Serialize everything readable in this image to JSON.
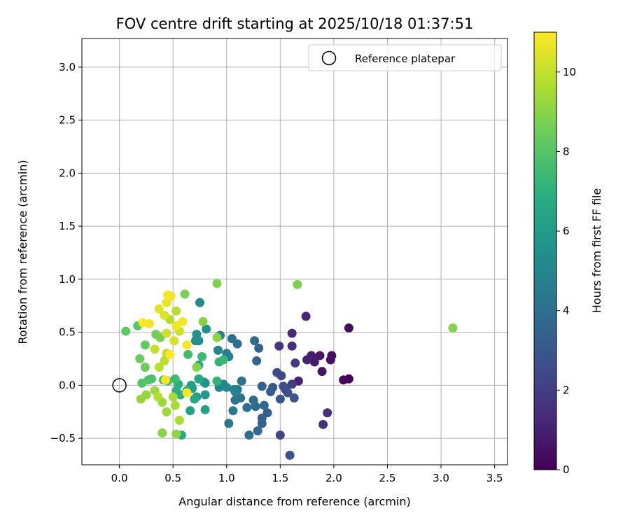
{
  "chart_data": {
    "type": "scatter",
    "title": "FOV centre drift starting at 2025/10/18 01:37:51",
    "xlabel": "Angular distance from reference (arcmin)",
    "ylabel": "Rotation from reference (arcmin)",
    "xlim": [
      -0.35,
      3.62
    ],
    "ylim": [
      -0.75,
      3.27
    ],
    "xticks": [
      0.0,
      0.5,
      1.0,
      1.5,
      2.0,
      2.5,
      3.0,
      3.5
    ],
    "yticks": [
      -0.5,
      0.0,
      0.5,
      1.0,
      1.5,
      2.0,
      2.5,
      3.0
    ],
    "xtick_labels": [
      "0.0",
      "0.5",
      "1.0",
      "1.5",
      "2.0",
      "2.5",
      "3.0",
      "3.5"
    ],
    "ytick_labels": [
      "−0.5",
      "0.0",
      "0.5",
      "1.0",
      "1.5",
      "2.0",
      "2.5",
      "3.0"
    ],
    "grid": true,
    "colormap": "viridis",
    "colorbar": {
      "label": "Hours from first FF file",
      "range": [
        0,
        11
      ],
      "ticks": [
        0,
        2,
        4,
        6,
        8,
        10
      ],
      "tick_labels": [
        "0",
        "2",
        "4",
        "6",
        "8",
        "10"
      ]
    },
    "legend": {
      "placement": "top-right",
      "entries": [
        {
          "label": "Reference platepar",
          "marker": "open-circle"
        }
      ]
    },
    "reference": {
      "x": 0.0,
      "y": 0.0
    },
    "points": [
      {
        "x": 2.14,
        "y": 0.06,
        "c": 0.1
      },
      {
        "x": 2.09,
        "y": 0.05,
        "c": 0.2
      },
      {
        "x": 2.14,
        "y": 0.54,
        "c": 0.3
      },
      {
        "x": 1.98,
        "y": 0.28,
        "c": 0.4
      },
      {
        "x": 1.97,
        "y": 0.24,
        "c": 0.5
      },
      {
        "x": 1.89,
        "y": 0.13,
        "c": 0.6
      },
      {
        "x": 1.87,
        "y": 0.28,
        "c": 0.7
      },
      {
        "x": 1.82,
        "y": 0.22,
        "c": 0.8
      },
      {
        "x": 1.79,
        "y": 0.28,
        "c": 0.9
      },
      {
        "x": 1.75,
        "y": 0.24,
        "c": 1.0
      },
      {
        "x": 1.67,
        "y": 0.04,
        "c": 1.1
      },
      {
        "x": 1.74,
        "y": 0.65,
        "c": 1.2
      },
      {
        "x": 1.61,
        "y": 0.49,
        "c": 1.3
      },
      {
        "x": 1.61,
        "y": 0.37,
        "c": 1.4
      },
      {
        "x": 1.94,
        "y": -0.26,
        "c": 1.5
      },
      {
        "x": 1.9,
        "y": -0.37,
        "c": 1.6
      },
      {
        "x": 1.49,
        "y": 0.37,
        "c": 1.7
      },
      {
        "x": 1.64,
        "y": 0.21,
        "c": 1.9
      },
      {
        "x": 1.61,
        "y": 0.01,
        "c": 2.0
      },
      {
        "x": 1.55,
        "y": -0.04,
        "c": 2.1
      },
      {
        "x": 1.5,
        "y": -0.47,
        "c": 2.3
      },
      {
        "x": 1.47,
        "y": 0.12,
        "c": 2.4
      },
      {
        "x": 1.51,
        "y": 0.09,
        "c": 2.5
      },
      {
        "x": 1.53,
        "y": -0.01,
        "c": 2.6
      },
      {
        "x": 1.57,
        "y": -0.07,
        "c": 2.7
      },
      {
        "x": 1.59,
        "y": -0.66,
        "c": 2.8
      },
      {
        "x": 1.63,
        "y": -0.12,
        "c": 2.9
      },
      {
        "x": 1.5,
        "y": -0.13,
        "c": 3.0
      },
      {
        "x": 1.43,
        "y": -0.02,
        "c": 3.1
      },
      {
        "x": 1.41,
        "y": -0.06,
        "c": 3.2
      },
      {
        "x": 1.38,
        "y": -0.26,
        "c": 3.3
      },
      {
        "x": 1.33,
        "y": -0.01,
        "c": 3.3
      },
      {
        "x": 1.33,
        "y": -0.31,
        "c": 3.4
      },
      {
        "x": 1.33,
        "y": -0.36,
        "c": 3.5
      },
      {
        "x": 1.3,
        "y": 0.35,
        "c": 3.5
      },
      {
        "x": 1.28,
        "y": 0.23,
        "c": 3.6
      },
      {
        "x": 1.29,
        "y": -0.43,
        "c": 3.7
      },
      {
        "x": 1.35,
        "y": -0.19,
        "c": 3.7
      },
      {
        "x": 1.26,
        "y": 0.42,
        "c": 3.8
      },
      {
        "x": 1.27,
        "y": -0.2,
        "c": 3.8
      },
      {
        "x": 1.25,
        "y": -0.14,
        "c": 3.9
      },
      {
        "x": 1.21,
        "y": -0.47,
        "c": 3.9
      },
      {
        "x": 1.19,
        "y": -0.21,
        "c": 4.0
      },
      {
        "x": 1.1,
        "y": 0.39,
        "c": 4.0
      },
      {
        "x": 1.05,
        "y": 0.44,
        "c": 4.1
      },
      {
        "x": 1.14,
        "y": 0.04,
        "c": 4.1
      },
      {
        "x": 1.13,
        "y": -0.12,
        "c": 4.2
      },
      {
        "x": 1.1,
        "y": -0.04,
        "c": 4.2
      },
      {
        "x": 1.08,
        "y": -0.14,
        "c": 4.3
      },
      {
        "x": 1.02,
        "y": -0.36,
        "c": 4.4
      },
      {
        "x": 1.06,
        "y": -0.24,
        "c": 4.5
      },
      {
        "x": 1.0,
        "y": 0.3,
        "c": 4.6
      },
      {
        "x": 0.94,
        "y": 0.47,
        "c": 4.7
      },
      {
        "x": 1.02,
        "y": 0.27,
        "c": 4.7
      },
      {
        "x": 1.07,
        "y": -0.04,
        "c": 4.8
      },
      {
        "x": 1.08,
        "y": -0.06,
        "c": 4.9
      },
      {
        "x": 0.97,
        "y": 0.01,
        "c": 5.0
      },
      {
        "x": 0.92,
        "y": 0.33,
        "c": 5.0
      },
      {
        "x": 1.0,
        "y": -0.02,
        "c": 5.1
      },
      {
        "x": 0.93,
        "y": -0.02,
        "c": 5.2
      },
      {
        "x": 0.8,
        "y": 0.02,
        "c": 5.3
      },
      {
        "x": 0.75,
        "y": 0.78,
        "c": 5.3
      },
      {
        "x": 0.74,
        "y": 0.42,
        "c": 5.4
      },
      {
        "x": 0.71,
        "y": 0.42,
        "c": 5.5
      },
      {
        "x": 0.81,
        "y": 0.53,
        "c": 5.5
      },
      {
        "x": 0.72,
        "y": 0.48,
        "c": 5.6
      },
      {
        "x": 0.79,
        "y": 0.03,
        "c": 5.7
      },
      {
        "x": 0.72,
        "y": -0.11,
        "c": 5.8
      },
      {
        "x": 0.8,
        "y": -0.09,
        "c": 5.9
      },
      {
        "x": 0.68,
        "y": -0.03,
        "c": 6.0
      },
      {
        "x": 0.67,
        "y": 0.0,
        "c": 6.1
      },
      {
        "x": 0.8,
        "y": -0.23,
        "c": 6.2
      },
      {
        "x": 0.66,
        "y": -0.24,
        "c": 6.3
      },
      {
        "x": 0.74,
        "y": 0.19,
        "c": 6.4
      },
      {
        "x": 0.74,
        "y": 0.06,
        "c": 6.5
      },
      {
        "x": 0.7,
        "y": -0.13,
        "c": 6.6
      },
      {
        "x": 0.63,
        "y": -0.05,
        "c": 6.7
      },
      {
        "x": 0.58,
        "y": -0.47,
        "c": 6.8
      },
      {
        "x": 0.55,
        "y": 0.01,
        "c": 6.9
      },
      {
        "x": 0.53,
        "y": -0.05,
        "c": 7.0
      },
      {
        "x": 0.57,
        "y": -0.09,
        "c": 7.0
      },
      {
        "x": 0.93,
        "y": 0.22,
        "c": 7.1
      },
      {
        "x": 0.91,
        "y": 0.04,
        "c": 7.2
      },
      {
        "x": 0.97,
        "y": 0.24,
        "c": 7.3
      },
      {
        "x": 0.77,
        "y": 0.27,
        "c": 7.4
      },
      {
        "x": 0.64,
        "y": 0.29,
        "c": 7.5
      },
      {
        "x": 0.52,
        "y": 0.06,
        "c": 7.5
      },
      {
        "x": 0.45,
        "y": 0.04,
        "c": 7.6
      },
      {
        "x": 0.41,
        "y": 0.05,
        "c": 7.7
      },
      {
        "x": 0.3,
        "y": 0.06,
        "c": 7.8
      },
      {
        "x": 0.27,
        "y": 0.05,
        "c": 7.9
      },
      {
        "x": 0.21,
        "y": 0.02,
        "c": 8.0
      },
      {
        "x": 0.17,
        "y": 0.56,
        "c": 8.1
      },
      {
        "x": 0.06,
        "y": 0.51,
        "c": 8.2
      },
      {
        "x": 0.24,
        "y": 0.38,
        "c": 8.3
      },
      {
        "x": 0.19,
        "y": 0.25,
        "c": 8.4
      },
      {
        "x": 0.24,
        "y": 0.17,
        "c": 8.5
      },
      {
        "x": 0.34,
        "y": 0.48,
        "c": 8.6
      },
      {
        "x": 0.38,
        "y": 0.45,
        "c": 8.7
      },
      {
        "x": 0.61,
        "y": 0.86,
        "c": 8.7
      },
      {
        "x": 1.66,
        "y": 0.95,
        "c": 8.8
      },
      {
        "x": 0.91,
        "y": 0.96,
        "c": 8.8
      },
      {
        "x": 3.11,
        "y": 0.54,
        "c": 8.9
      },
      {
        "x": 0.78,
        "y": 0.6,
        "c": 8.9
      },
      {
        "x": 0.72,
        "y": 0.17,
        "c": 9.0
      },
      {
        "x": 0.4,
        "y": -0.45,
        "c": 9.0
      },
      {
        "x": 0.53,
        "y": -0.46,
        "c": 9.1
      },
      {
        "x": 0.91,
        "y": 0.45,
        "c": 9.1
      },
      {
        "x": 0.25,
        "y": -0.09,
        "c": 9.2
      },
      {
        "x": 0.2,
        "y": -0.13,
        "c": 9.2
      },
      {
        "x": 0.33,
        "y": -0.05,
        "c": 9.3
      },
      {
        "x": 0.4,
        "y": -0.16,
        "c": 9.3
      },
      {
        "x": 0.44,
        "y": -0.25,
        "c": 9.4
      },
      {
        "x": 0.52,
        "y": -0.19,
        "c": 9.5
      },
      {
        "x": 0.5,
        "y": -0.11,
        "c": 9.5
      },
      {
        "x": 0.56,
        "y": -0.33,
        "c": 9.6
      },
      {
        "x": 0.36,
        "y": -0.11,
        "c": 9.7
      },
      {
        "x": 0.47,
        "y": 0.62,
        "c": 9.7
      },
      {
        "x": 0.53,
        "y": 0.7,
        "c": 9.8
      },
      {
        "x": 0.37,
        "y": 0.17,
        "c": 9.8
      },
      {
        "x": 0.42,
        "y": 0.23,
        "c": 9.9
      },
      {
        "x": 0.44,
        "y": 0.3,
        "c": 9.9
      },
      {
        "x": 0.33,
        "y": 0.34,
        "c": 10.0
      },
      {
        "x": 0.56,
        "y": 0.51,
        "c": 10.1
      },
      {
        "x": 0.44,
        "y": 0.49,
        "c": 10.2
      },
      {
        "x": 0.51,
        "y": 0.42,
        "c": 10.3
      },
      {
        "x": 0.42,
        "y": 0.66,
        "c": 10.4
      },
      {
        "x": 0.37,
        "y": 0.72,
        "c": 10.5
      },
      {
        "x": 0.44,
        "y": 0.78,
        "c": 10.6
      },
      {
        "x": 0.48,
        "y": 0.84,
        "c": 10.7
      },
      {
        "x": 0.53,
        "y": 0.56,
        "c": 10.8
      },
      {
        "x": 0.59,
        "y": 0.6,
        "c": 10.8
      },
      {
        "x": 0.45,
        "y": 0.85,
        "c": 10.9
      },
      {
        "x": 0.43,
        "y": 0.05,
        "c": 10.9
      },
      {
        "x": 0.63,
        "y": -0.07,
        "c": 11.0
      },
      {
        "x": 0.22,
        "y": 0.59,
        "c": 11.0
      },
      {
        "x": 0.47,
        "y": 0.29,
        "c": 11.0
      },
      {
        "x": 0.63,
        "y": 0.38,
        "c": 10.9
      },
      {
        "x": 0.28,
        "y": 0.58,
        "c": 10.8
      }
    ]
  }
}
